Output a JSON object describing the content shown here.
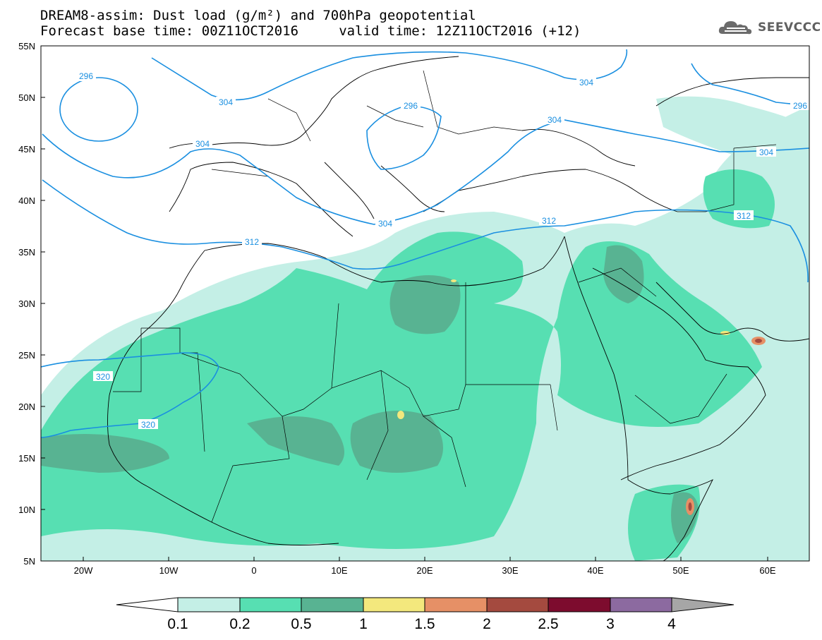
{
  "header": {
    "title_line1": "DREAM8-assim: Dust load (g/m²) and 700hPa geopotential",
    "title_line2": "Forecast base time: 00Z11OCT2016     valid time: 12Z11OCT2016 (+12)"
  },
  "logo": {
    "text": "SEEVCCC",
    "icon": "cloud-logo-icon"
  },
  "map": {
    "lat_ticks": [
      "55N",
      "50N",
      "45N",
      "40N",
      "35N",
      "30N",
      "25N",
      "20N",
      "15N",
      "10N",
      "5N"
    ],
    "lon_ticks": [
      "20W",
      "10W",
      "0",
      "10E",
      "20E",
      "30E",
      "40E",
      "50E",
      "60E"
    ],
    "contour_labels": [
      "296",
      "304",
      "296",
      "304",
      "304",
      "304",
      "304",
      "312",
      "312",
      "320",
      "320",
      "296",
      "304",
      "312"
    ]
  },
  "colorbar": {
    "labels": [
      "0.1",
      "0.2",
      "0.5",
      "1",
      "1.5",
      "2",
      "2.5",
      "3",
      "4"
    ],
    "colors": [
      "#c4efe6",
      "#57dfb2",
      "#58b392",
      "#f3e87d",
      "#e69066",
      "#a44a3f",
      "#7d0c2e",
      "#8c6aa0",
      "#a6a6a6"
    ],
    "low_arrow_color": "#ffffff",
    "high_arrow_color": "#a6a6a6"
  },
  "colors": {
    "contour": "#1a8fe0",
    "land_border": "#000000",
    "background": "#ffffff"
  }
}
